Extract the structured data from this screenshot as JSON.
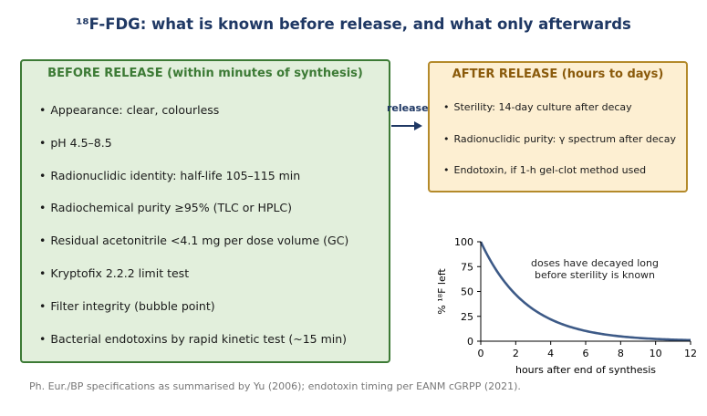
{
  "title": "¹⁸F-FDG: what is known before release, and what only afterwards",
  "before": {
    "heading": "BEFORE RELEASE (within minutes of synthesis)",
    "items": [
      "Appearance: clear, colourless",
      "pH 4.5–8.5",
      "Radionuclidic identity: half-life 105–115 min",
      "Radiochemical purity ≥95% (TLC or HPLC)",
      "Residual acetonitrile <4.1 mg per dose volume (GC)",
      "Kryptofix 2.2.2 limit test",
      "Filter integrity (bubble point)",
      "Bacterial endotoxins by rapid kinetic test (~15 min)"
    ]
  },
  "after": {
    "heading": "AFTER RELEASE (hours to days)",
    "items": [
      "Sterility: 14-day culture after decay",
      "Radionuclidic purity: γ spectrum after decay",
      "Endotoxin, if 1-h gel-clot method used"
    ]
  },
  "release_label": "release",
  "bullet": "•",
  "chart_data": {
    "type": "line",
    "xlabel": "hours after end of synthesis",
    "ylabel": "% ¹⁸F left",
    "xlim": [
      0,
      12
    ],
    "ylim": [
      0,
      100
    ],
    "xticks": [
      0,
      2,
      4,
      6,
      8,
      10,
      12
    ],
    "yticks": [
      0,
      25,
      50,
      75,
      100
    ],
    "grid": false,
    "annotation": [
      "doses have decayed long",
      "before sterility is known"
    ],
    "half_life_hours": 1.83,
    "series": [
      {
        "x": [
          0,
          1,
          2,
          3,
          4,
          5,
          6,
          7,
          8,
          9,
          10,
          11,
          12
        ],
        "y": [
          100,
          68.5,
          46.9,
          32.1,
          22.0,
          15.1,
          10.3,
          7.1,
          4.8,
          3.3,
          2.3,
          1.6,
          1.1
        ]
      }
    ],
    "colors": {
      "line": "#3d5a87"
    }
  },
  "footnote": "Ph. Eur./BP specifications as summarised by Yu (2006); endotoxin timing per EANM cGRPP (2021)."
}
